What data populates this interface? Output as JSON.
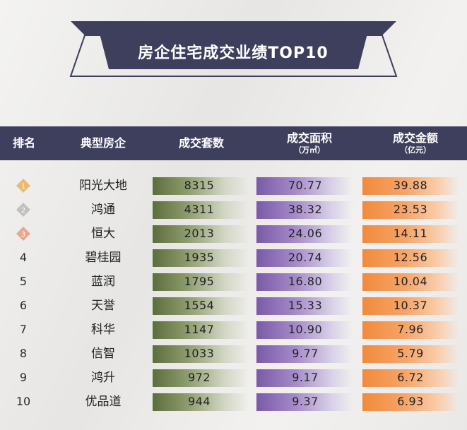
{
  "title": "房企住宅成交业绩TOP10",
  "colors": {
    "header_bg": "#3e3f5c",
    "units_bar": "#5c6e3c",
    "area_bar": "#7a5aa8",
    "amount_bar": "#f28a3c",
    "gold": "#e8b25c",
    "silver": "#b9b9b9",
    "bronze": "#e89a7a"
  },
  "headers": {
    "rank": "排名",
    "company": "典型房企",
    "units": "成交套数",
    "area": "成交面积",
    "area_unit": "（万㎡）",
    "amount": "成交金额",
    "amount_unit": "（亿元）"
  },
  "medal_icons": [
    "gold-medal-icon",
    "silver-medal-icon",
    "bronze-medal-icon"
  ],
  "chart_data": {
    "type": "table",
    "title": "房企住宅成交业绩TOP10",
    "columns": [
      "排名",
      "典型房企",
      "成交套数",
      "成交面积（万㎡）",
      "成交金额（亿元）"
    ],
    "rows": [
      {
        "rank": "1",
        "company": "阳光大地",
        "units": "8315",
        "area": "70.77",
        "amount": "39.88"
      },
      {
        "rank": "2",
        "company": "鸿通",
        "units": "4311",
        "area": "38.32",
        "amount": "23.53"
      },
      {
        "rank": "3",
        "company": "恒大",
        "units": "2013",
        "area": "24.06",
        "amount": "14.11"
      },
      {
        "rank": "4",
        "company": "碧桂园",
        "units": "1935",
        "area": "20.74",
        "amount": "12.56"
      },
      {
        "rank": "5",
        "company": "蓝润",
        "units": "1795",
        "area": "16.80",
        "amount": "10.04"
      },
      {
        "rank": "6",
        "company": "天誉",
        "units": "1554",
        "area": "15.33",
        "amount": "10.37"
      },
      {
        "rank": "7",
        "company": "科华",
        "units": "1147",
        "area": "10.90",
        "amount": "7.96"
      },
      {
        "rank": "8",
        "company": "信智",
        "units": "1033",
        "area": "9.77",
        "amount": "5.79"
      },
      {
        "rank": "9",
        "company": "鸿升",
        "units": "972",
        "area": "9.17",
        "amount": "6.72"
      },
      {
        "rank": "10",
        "company": "优品道",
        "units": "944",
        "area": "9.37",
        "amount": "6.93"
      }
    ]
  }
}
